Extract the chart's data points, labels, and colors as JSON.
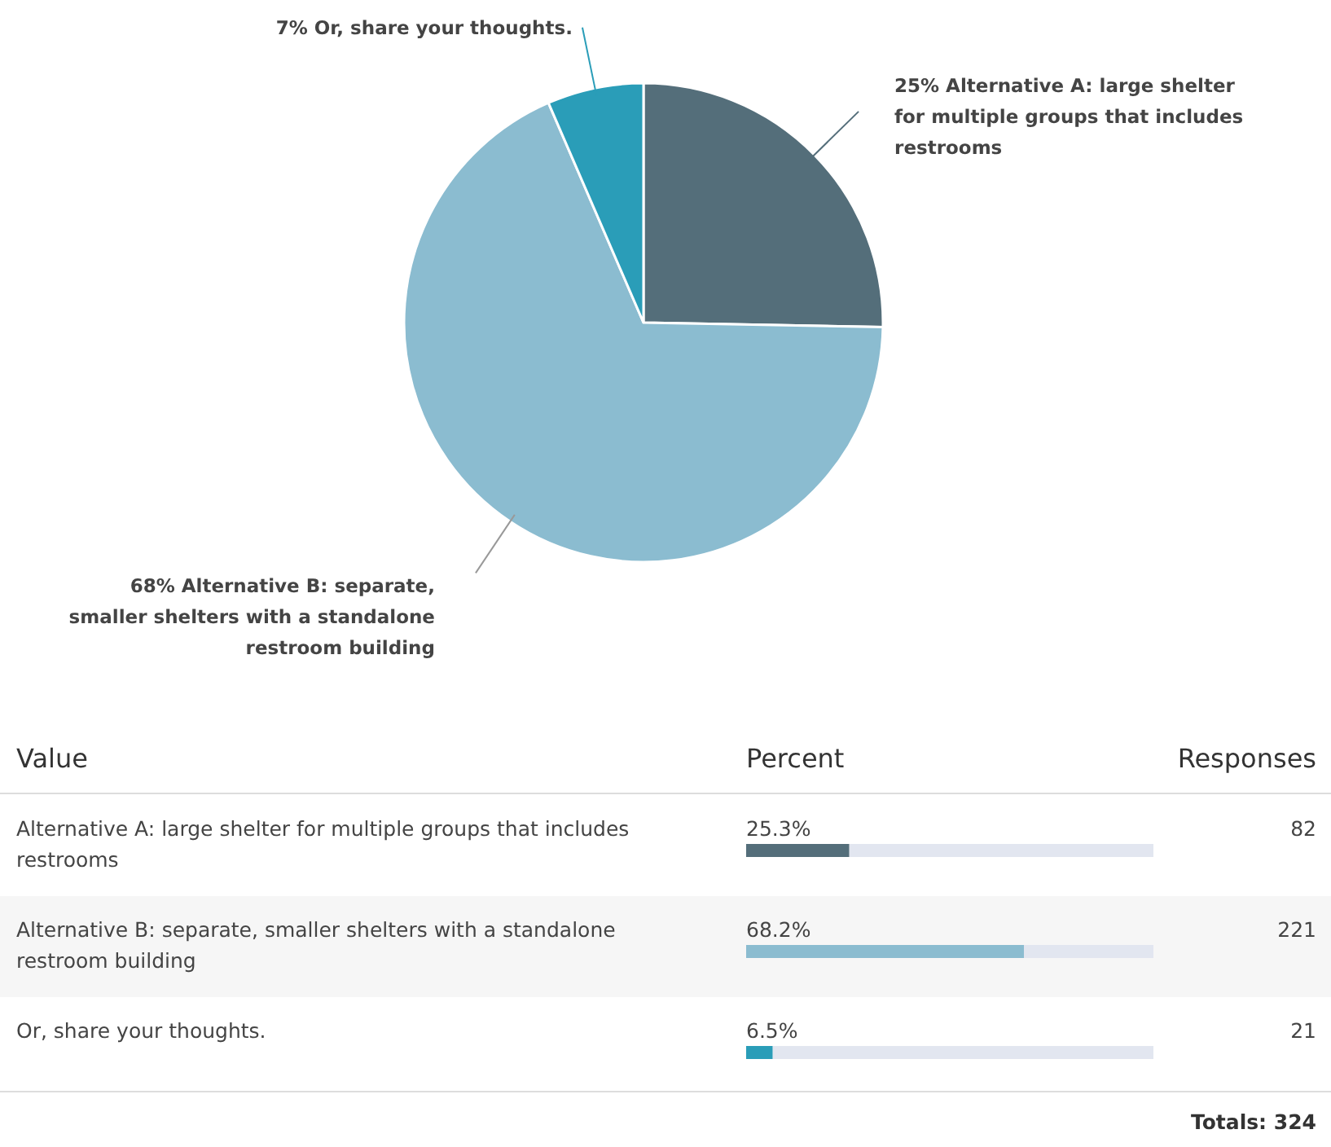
{
  "chart_data": [
    {
      "type": "pie",
      "categories": [
        "Alternative A: large shelter for multiple groups that includes restrooms",
        "Alternative B: separate, smaller shelters with a standalone restroom building",
        "Or, share your thoughts."
      ],
      "values": [
        25.3,
        68.2,
        6.5
      ],
      "value_labels": [
        "25%",
        "68%",
        "7%"
      ],
      "colors": [
        "#546e7a",
        "#8bbcd0",
        "#2a9db8"
      ]
    },
    {
      "type": "bar",
      "orientation": "horizontal",
      "categories": [
        "Alternative A: large shelter for multiple groups that includes restrooms",
        "Alternative B: separate, smaller shelters with a standalone restroom building",
        "Or, share your thoughts."
      ],
      "values": [
        25.3,
        68.2,
        6.5
      ],
      "value_labels": [
        "25.3%",
        "68.2%",
        "6.5%"
      ],
      "colors": [
        "#546e7a",
        "#8bbcd0",
        "#2a9db8"
      ],
      "xlim": [
        0,
        100
      ],
      "tick_labels": false,
      "ylabel": "Value",
      "xlabel": "Percent",
      "annotations": [
        "Responses",
        "82",
        "221",
        "21",
        "Totals: 324"
      ]
    }
  ]
}
